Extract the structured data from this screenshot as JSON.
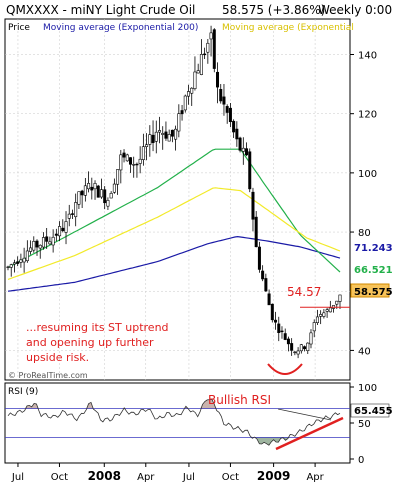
{
  "header": {
    "title": "QMXXXX - miNY Light Crude Oil",
    "price": "58.575 (+3.86%)",
    "period": "Weekly 0:00"
  },
  "legend": {
    "price": "Price",
    "ema_slow": "Moving average (Exponential 200)",
    "ema_fast": "Moving average (Exponential"
  },
  "colors": {
    "ema_slow": "#1a1aa6",
    "ema_mid": "#22b04a",
    "ema_fast": "#f2ea2a",
    "annotation": "#e02020",
    "grid": "#c8c8c8",
    "rsi_line": "#1a1aa6",
    "rsi_fill_over": "#c9b3ad",
    "rsi_fill_under": "#9fb5a0",
    "rsi_levels": "#3a3ac0"
  },
  "annotations": {
    "level_label": "54.57",
    "comment_line1": "...resuming its ST uptrend",
    "comment_line2": "and opening up further",
    "comment_line3": "upside risk.",
    "watermark": "© ProRealTime.com",
    "bullish_rsi": "Bullish RSI"
  },
  "chart_data": [
    {
      "type": "line",
      "subtype": "candlestick",
      "x": [
        "Jul",
        "Oct",
        "2008",
        "Apr",
        "Jul",
        "Oct",
        "2009",
        "Apr"
      ],
      "price_scale": {
        "ylim": [
          30,
          152
        ],
        "ticks": [
          40,
          60,
          80,
          100,
          120,
          140
        ]
      },
      "right_labels": [
        {
          "text": "71.243",
          "value": 71.243,
          "color": "#1a1aa6"
        },
        {
          "text": "66.521",
          "value": 66.521,
          "color": "#22b04a"
        },
        {
          "text": "58.575",
          "value": 58.575,
          "color": "#f0a500"
        }
      ],
      "level": 54.57,
      "anchors": [
        [
          0,
          68
        ],
        [
          0.06,
          74
        ],
        [
          0.13,
          78
        ],
        [
          0.18,
          83
        ],
        [
          0.2,
          90
        ],
        [
          0.25,
          96
        ],
        [
          0.3,
          91
        ],
        [
          0.34,
          105
        ],
        [
          0.39,
          103
        ],
        [
          0.45,
          115
        ],
        [
          0.5,
          112
        ],
        [
          0.54,
          128
        ],
        [
          0.58,
          138
        ],
        [
          0.61,
          146
        ],
        [
          0.63,
          128
        ],
        [
          0.66,
          120
        ],
        [
          0.69,
          110
        ],
        [
          0.72,
          104
        ],
        [
          0.75,
          72
        ],
        [
          0.78,
          58
        ],
        [
          0.8,
          50
        ],
        [
          0.83,
          45
        ],
        [
          0.86,
          40
        ],
        [
          0.89,
          41
        ],
        [
          0.91,
          44
        ],
        [
          0.93,
          52
        ],
        [
          0.96,
          53
        ],
        [
          1.0,
          58.575
        ]
      ],
      "ema_slow": [
        [
          0,
          60
        ],
        [
          0.2,
          63
        ],
        [
          0.45,
          70
        ],
        [
          0.6,
          76
        ],
        [
          0.69,
          78.5
        ],
        [
          0.78,
          77
        ],
        [
          0.88,
          75
        ],
        [
          1.0,
          71.2
        ]
      ],
      "ema_mid": [
        [
          0,
          68
        ],
        [
          0.2,
          80
        ],
        [
          0.45,
          95
        ],
        [
          0.62,
          108
        ],
        [
          0.7,
          108
        ],
        [
          0.78,
          95
        ],
        [
          0.88,
          79
        ],
        [
          1.0,
          66.5
        ]
      ],
      "ema_fast": [
        [
          0,
          64
        ],
        [
          0.2,
          72
        ],
        [
          0.45,
          85
        ],
        [
          0.62,
          95
        ],
        [
          0.7,
          94
        ],
        [
          0.8,
          86
        ],
        [
          0.9,
          78
        ],
        [
          1.0,
          73.6
        ]
      ]
    },
    {
      "type": "line",
      "title": "RSI (9)",
      "ylim": [
        0,
        100
      ],
      "ticks": [
        0,
        50,
        100
      ],
      "levels": [
        70,
        30
      ],
      "last_value": 65.455,
      "anchors": [
        [
          0,
          60
        ],
        [
          0.04,
          66
        ],
        [
          0.08,
          78
        ],
        [
          0.1,
          62
        ],
        [
          0.14,
          58
        ],
        [
          0.17,
          66
        ],
        [
          0.21,
          55
        ],
        [
          0.25,
          78
        ],
        [
          0.28,
          54
        ],
        [
          0.31,
          55
        ],
        [
          0.35,
          68
        ],
        [
          0.38,
          62
        ],
        [
          0.42,
          70
        ],
        [
          0.45,
          55
        ],
        [
          0.48,
          63
        ],
        [
          0.51,
          60
        ],
        [
          0.54,
          72
        ],
        [
          0.57,
          60
        ],
        [
          0.6,
          85
        ],
        [
          0.62,
          78
        ],
        [
          0.65,
          50
        ],
        [
          0.68,
          44
        ],
        [
          0.72,
          38
        ],
        [
          0.74,
          29
        ],
        [
          0.77,
          20
        ],
        [
          0.8,
          24
        ],
        [
          0.84,
          29
        ],
        [
          0.88,
          38
        ],
        [
          0.92,
          50
        ],
        [
          0.95,
          56
        ],
        [
          0.98,
          60
        ],
        [
          1.0,
          65.455
        ]
      ]
    }
  ]
}
